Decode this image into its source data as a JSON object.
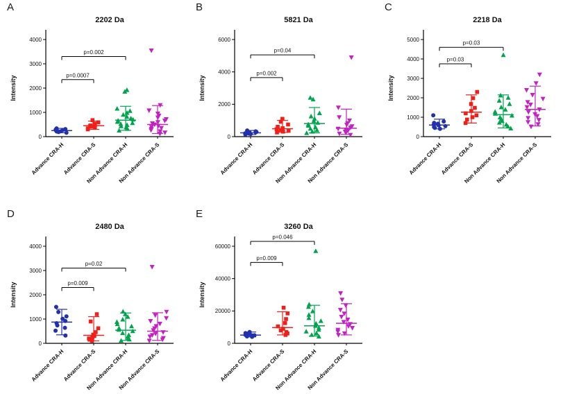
{
  "figure": {
    "background": "#FFFFFF",
    "categories": [
      "Advance CRA-H",
      "Advance CRA-S",
      "Non Advance CRA-H",
      "Non Advance CRA-S"
    ],
    "group_styles": [
      {
        "name": "Advance CRA-H",
        "color": "#2131AE",
        "marker": "circle"
      },
      {
        "name": "Advance CRA-S",
        "color": "#EE2019",
        "marker": "square"
      },
      {
        "name": "Non Advance CRA-H",
        "color": "#00A44D",
        "marker": "triangle-up"
      },
      {
        "name": "Non Advance CRA-S",
        "color": "#C122C1",
        "marker": "triangle-down"
      }
    ]
  },
  "chart_data": [
    {
      "type": "scatter",
      "panel": "A",
      "title": "2202 Da",
      "ylabel": "Intensity",
      "ylim": [
        0,
        4000
      ],
      "yticks": [
        0,
        1000,
        2000,
        3000,
        4000
      ],
      "grid": false,
      "categories": [
        "Advance CRA-H",
        "Advance CRA-S",
        "Non Advance CRA-H",
        "Non Advance CRA-S"
      ],
      "series": [
        {
          "name": "Advance CRA-H",
          "values": [
            160,
            190,
            210,
            220,
            235,
            250,
            260,
            275,
            290,
            310,
            340
          ],
          "median": 250,
          "lo": 160,
          "hi": 340
        },
        {
          "name": "Advance CRA-S",
          "values": [
            300,
            340,
            380,
            410,
            440,
            460,
            490,
            530,
            590,
            680
          ],
          "median": 450,
          "lo": 300,
          "hi": 640
        },
        {
          "name": "Non Advance CRA-H",
          "values": [
            250,
            320,
            380,
            430,
            480,
            520,
            560,
            610,
            660,
            700,
            750,
            820,
            900,
            980,
            1060,
            1150,
            1850,
            1920
          ],
          "median": 680,
          "lo": 260,
          "hi": 1250
        },
        {
          "name": "Non Advance CRA-S",
          "values": [
            120,
            170,
            220,
            270,
            320,
            360,
            400,
            450,
            500,
            550,
            600,
            660,
            720,
            790,
            870,
            950,
            1080,
            1300,
            3550
          ],
          "median": 500,
          "lo": 130,
          "hi": 1280
        }
      ],
      "comparisons": [
        {
          "from": 0,
          "to": 2,
          "y": 3300,
          "label": "p=0.002"
        },
        {
          "from": 0,
          "to": 1,
          "y": 2350,
          "label": "p=0.0007"
        }
      ]
    },
    {
      "type": "scatter",
      "panel": "B",
      "title": "5821 Da",
      "ylabel": "Intensity",
      "ylim": [
        0,
        6000
      ],
      "yticks": [
        0,
        2000,
        4000,
        6000
      ],
      "grid": false,
      "categories": [
        "Advance CRA-H",
        "Advance CRA-S",
        "Non Advance CRA-H",
        "Non Advance CRA-S"
      ],
      "series": [
        {
          "name": "Advance CRA-H",
          "values": [
            130,
            160,
            185,
            205,
            225,
            245,
            270,
            295,
            325,
            380
          ],
          "median": 235,
          "lo": 130,
          "hi": 380
        },
        {
          "name": "Advance CRA-S",
          "values": [
            260,
            310,
            360,
            410,
            460,
            520,
            610,
            750,
            920,
            1100
          ],
          "median": 490,
          "lo": 260,
          "hi": 1000
        },
        {
          "name": "Non Advance CRA-H",
          "values": [
            220,
            310,
            400,
            490,
            580,
            670,
            760,
            860,
            970,
            1100,
            1250,
            1450,
            2300,
            2400
          ],
          "median": 810,
          "lo": 230,
          "hi": 1800
        },
        {
          "name": "Non Advance CRA-S",
          "values": [
            110,
            190,
            250,
            310,
            370,
            430,
            490,
            560,
            640,
            730,
            830,
            1000,
            1200,
            1800,
            4900
          ],
          "median": 520,
          "lo": 140,
          "hi": 1700
        }
      ],
      "comparisons": [
        {
          "from": 0,
          "to": 2,
          "y": 5050,
          "label": "p=0.04"
        },
        {
          "from": 0,
          "to": 1,
          "y": 3650,
          "label": "p=0.002"
        }
      ]
    },
    {
      "type": "scatter",
      "panel": "C",
      "title": "2218 Da",
      "ylabel": "Intensity",
      "ylim": [
        0,
        5000
      ],
      "yticks": [
        0,
        1000,
        2000,
        3000,
        4000,
        5000
      ],
      "grid": false,
      "categories": [
        "Advance CRA-H",
        "Advance CRA-S",
        "Non Advance CRA-H",
        "Non Advance CRA-S"
      ],
      "series": [
        {
          "name": "Advance CRA-H",
          "values": [
            400,
            450,
            495,
            540,
            580,
            620,
            665,
            710,
            780,
            1100
          ],
          "median": 600,
          "lo": 400,
          "hi": 900
        },
        {
          "name": "Advance CRA-S",
          "values": [
            700,
            880,
            1000,
            1100,
            1200,
            1320,
            1480,
            1680,
            1980,
            2300
          ],
          "median": 1260,
          "lo": 700,
          "hi": 2150
        },
        {
          "name": "Non Advance CRA-H",
          "values": [
            420,
            520,
            620,
            720,
            810,
            900,
            990,
            1080,
            1180,
            1280,
            1390,
            1510,
            1680,
            1850,
            2000,
            2120,
            4200
          ],
          "median": 1130,
          "lo": 450,
          "hi": 2150
        },
        {
          "name": "Non Advance CRA-S",
          "values": [
            520,
            640,
            750,
            860,
            960,
            1060,
            1160,
            1270,
            1400,
            1520,
            1650,
            1780,
            1950,
            2150,
            2400,
            2750,
            3200
          ],
          "median": 1400,
          "lo": 550,
          "hi": 2600
        }
      ],
      "comparisons": [
        {
          "from": 0,
          "to": 2,
          "y": 4600,
          "label": "p=0.03"
        },
        {
          "from": 0,
          "to": 1,
          "y": 3750,
          "label": "p=0.03"
        }
      ]
    },
    {
      "type": "scatter",
      "panel": "D",
      "title": "2480 Da",
      "ylabel": "Intensity",
      "ylim": [
        0,
        4000
      ],
      "yticks": [
        0,
        1000,
        2000,
        3000,
        4000
      ],
      "grid": false,
      "categories": [
        "Advance CRA-H",
        "Advance CRA-S",
        "Non Advance CRA-H",
        "Non Advance CRA-S"
      ],
      "series": [
        {
          "name": "Advance CRA-H",
          "values": [
            320,
            520,
            640,
            740,
            830,
            920,
            1010,
            1110,
            1290,
            1500
          ],
          "median": 875,
          "lo": 350,
          "hi": 1400
        },
        {
          "name": "Advance CRA-S",
          "values": [
            100,
            150,
            200,
            250,
            300,
            360,
            460,
            620,
            900,
            1200
          ],
          "median": 330,
          "lo": 100,
          "hi": 1100
        },
        {
          "name": "Non Advance CRA-H",
          "values": [
            110,
            160,
            220,
            280,
            340,
            420,
            500,
            560,
            620,
            700,
            790,
            880,
            980,
            1090,
            1200,
            1310
          ],
          "median": 540,
          "lo": 120,
          "hi": 1250
        },
        {
          "name": "Non Advance CRA-S",
          "values": [
            110,
            160,
            220,
            280,
            340,
            400,
            460,
            540,
            620,
            710,
            810,
            920,
            1040,
            1160,
            1300,
            3150
          ],
          "median": 500,
          "lo": 120,
          "hi": 1260
        }
      ],
      "comparisons": [
        {
          "from": 0,
          "to": 2,
          "y": 3100,
          "label": "p=0.02"
        },
        {
          "from": 0,
          "to": 1,
          "y": 2300,
          "label": "p=0.009"
        }
      ]
    },
    {
      "type": "scatter",
      "panel": "E",
      "title": "3260 Da",
      "ylabel": "Intensity",
      "ylim": [
        0,
        60000
      ],
      "yticks": [
        0,
        20000,
        40000,
        60000
      ],
      "grid": false,
      "categories": [
        "Advance CRA-H",
        "Advance CRA-S",
        "Non Advance CRA-H",
        "Non Advance CRA-S"
      ],
      "series": [
        {
          "name": "Advance CRA-H",
          "values": [
            4000,
            4300,
            4600,
            4800,
            5000,
            5200,
            5500,
            5800,
            6300,
            7000
          ],
          "median": 5100,
          "lo": 4000,
          "hi": 7000
        },
        {
          "name": "Advance CRA-S",
          "values": [
            5200,
            6100,
            7000,
            8000,
            9000,
            10500,
            12500,
            15000,
            18500,
            22000
          ],
          "median": 9750,
          "lo": 5200,
          "hi": 19500
        },
        {
          "name": "Non Advance CRA-H",
          "values": [
            4200,
            5200,
            6200,
            7300,
            8400,
            9500,
            10800,
            12200,
            13800,
            15600,
            17600,
            19800,
            22500,
            24000,
            57000
          ],
          "median": 10800,
          "lo": 4500,
          "hi": 23500
        },
        {
          "name": "Non Advance CRA-S",
          "values": [
            5200,
            6200,
            7300,
            8400,
            9500,
            10700,
            11900,
            13200,
            14700,
            16400,
            18400,
            20700,
            23500,
            27000,
            31000
          ],
          "median": 12400,
          "lo": 5200,
          "hi": 24500
        }
      ],
      "comparisons": [
        {
          "from": 0,
          "to": 2,
          "y": 63000,
          "label": "p=0.046"
        },
        {
          "from": 0,
          "to": 1,
          "y": 50000,
          "label": "p=0.009"
        }
      ]
    }
  ]
}
